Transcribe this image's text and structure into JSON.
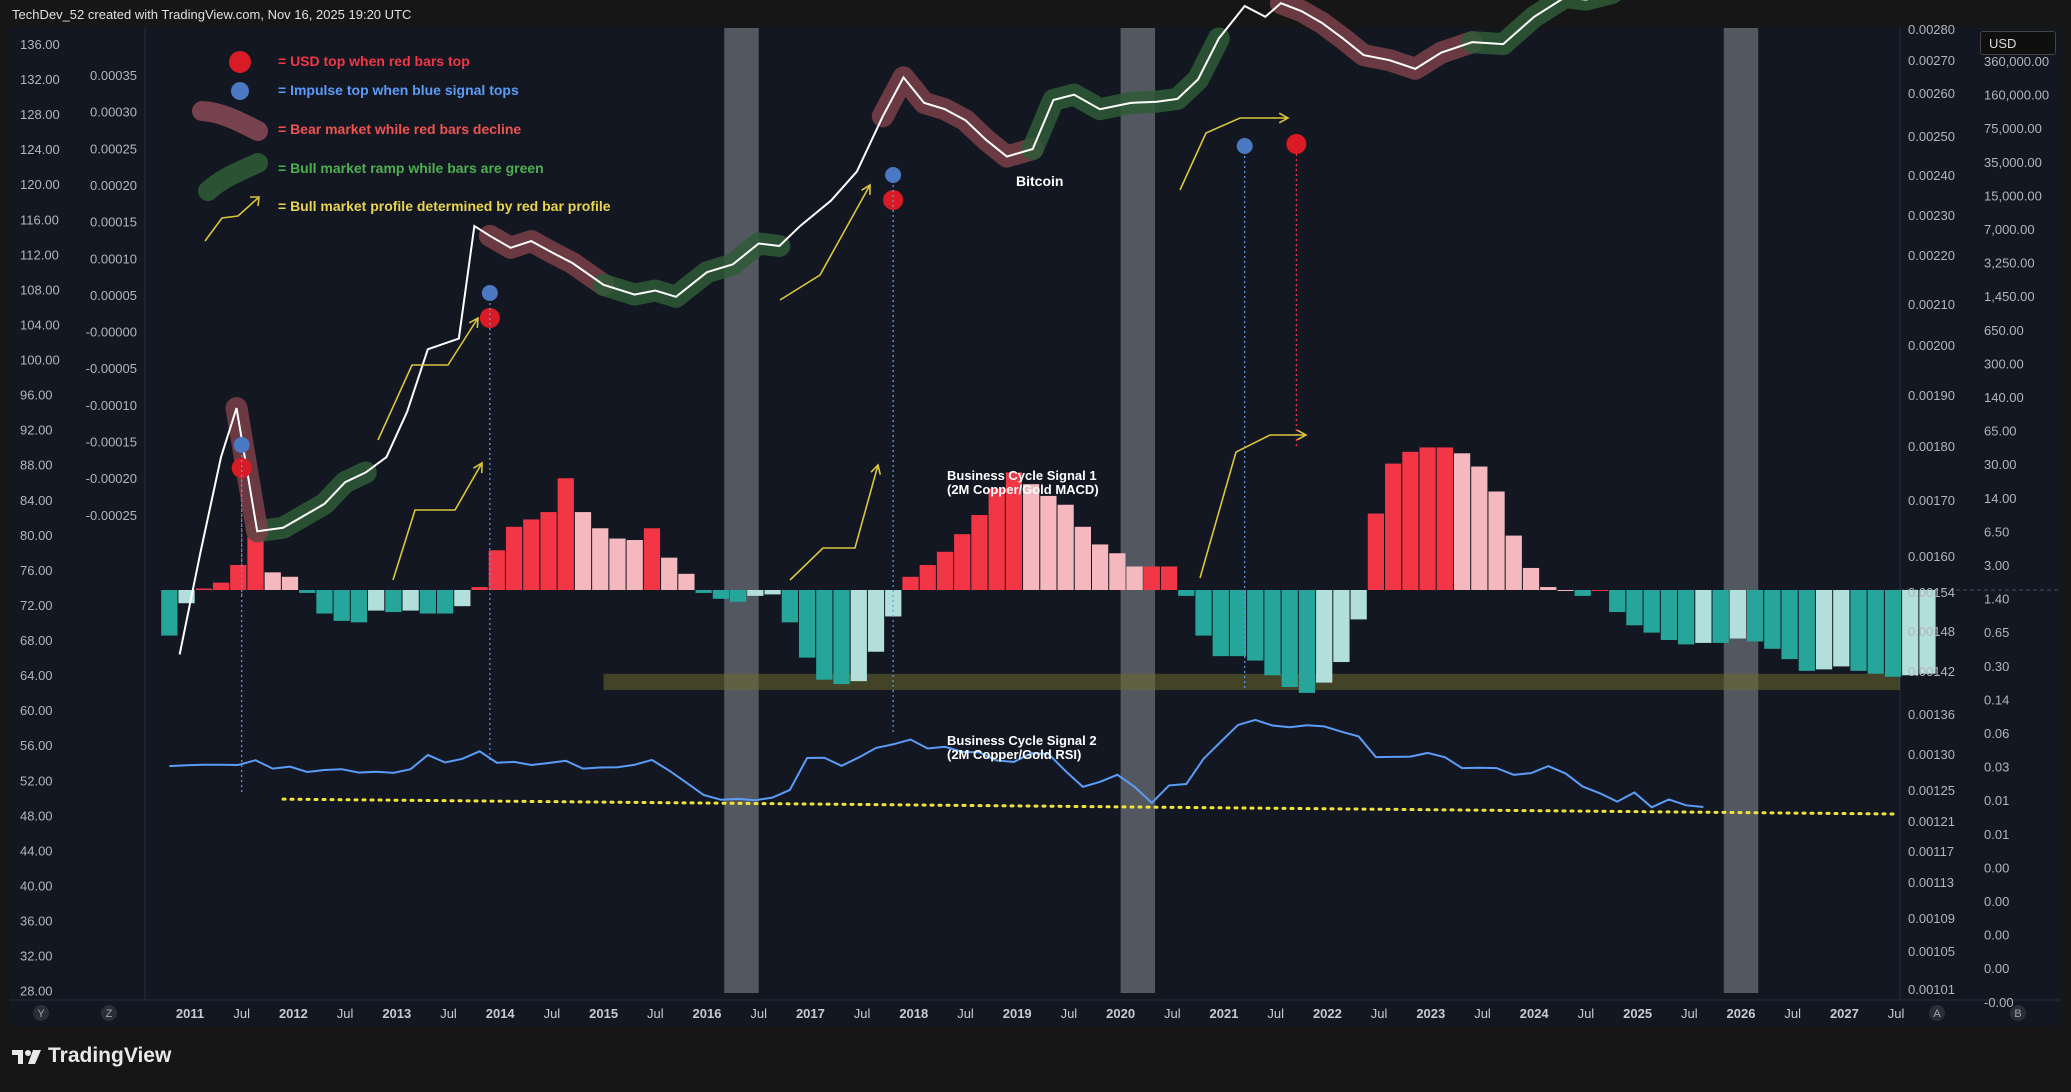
{
  "header": {
    "attribution": "TechDev_52 created with TradingView.com, Nov 16, 2025 19:20 UTC"
  },
  "brand": {
    "name": "TradingView"
  },
  "currency_badge": "USD",
  "buttons": {
    "y": "Y",
    "z": "Z",
    "a": "A",
    "b": "B"
  },
  "legend": [
    {
      "text": "= USD top when red bars top",
      "color": "#f23645",
      "marker": "red-dot"
    },
    {
      "text": "= Impulse top when blue signal tops",
      "color": "#5b9cf6",
      "marker": "blue-dot"
    },
    {
      "text": "= Bear market while red bars decline",
      "color": "#ef5350",
      "marker": "red-swoosh"
    },
    {
      "text": "= Bull market ramp while bars are green",
      "color": "#4caf50",
      "marker": "green-swoosh"
    },
    {
      "text": "= Bull market profile determined by red bar profile",
      "color": "#e8d44d",
      "marker": "yellow-arrow"
    }
  ],
  "annotations": {
    "bitcoin": "Bitcoin",
    "signal1_title": "Business Cycle Signal 1",
    "signal1_sub": "(2M Copper/Gold MACD)",
    "signal2_title": "Business Cycle Signal 2",
    "signal2_sub": "(2M Copper/Gold RSI)"
  },
  "colors": {
    "background": "#131722",
    "macd_bull_strong": "#f23645",
    "macd_bull_weak": "#f5b8be",
    "macd_bear_strong": "#26a69a",
    "macd_bear_weak": "#b2dfdb",
    "rsi_line": "#5b9cf6",
    "btc_line": "#ffffff",
    "trend_line": "#f2e33a"
  },
  "chart_data": {
    "type": "line",
    "x_axis": {
      "ticks": [
        "2011",
        "Jul",
        "2012",
        "Jul",
        "2013",
        "Jul",
        "2014",
        "Jul",
        "2015",
        "Jul",
        "2016",
        "Jul",
        "2017",
        "Jul",
        "2018",
        "Jul",
        "2019",
        "Jul",
        "2020",
        "Jul",
        "2021",
        "Jul",
        "2022",
        "Jul",
        "2023",
        "Jul",
        "2024",
        "Jul",
        "2025",
        "Jul",
        "2026",
        "Jul",
        "2027",
        "Jul"
      ],
      "range": [
        "2010-07",
        "2027-07"
      ]
    },
    "left_axis_outer": {
      "ticks": [
        "136.00",
        "132.00",
        "128.00",
        "124.00",
        "120.00",
        "116.00",
        "112.00",
        "108.00",
        "104.00",
        "100.00",
        "96.00",
        "92.00",
        "88.00",
        "84.00",
        "80.00",
        "76.00",
        "72.00",
        "68.00",
        "64.00",
        "60.00",
        "56.00",
        "52.00",
        "48.00",
        "44.00",
        "40.00",
        "36.00",
        "32.00",
        "28.00"
      ]
    },
    "left_axis_inner": {
      "ticks": [
        "0.00035",
        "0.00030",
        "0.00025",
        "0.00020",
        "0.00015",
        "0.00010",
        "0.00005",
        "-0.00000",
        "-0.00005",
        "-0.00010",
        "-0.00015",
        "-0.00020",
        "-0.00025"
      ]
    },
    "right_axis_inner": {
      "ticks": [
        "0.00280",
        "0.00270",
        "0.00260",
        "0.00250",
        "0.00240",
        "0.00230",
        "0.00220",
        "0.00210",
        "0.00200",
        "0.00190",
        "0.00180",
        "0.00170",
        "0.00160",
        "0.00154",
        "0.00148",
        "0.00142",
        "0.00136",
        "0.00130",
        "0.00125",
        "0.00121",
        "0.00117",
        "0.00113",
        "0.00109",
        "0.00105",
        "0.00101"
      ]
    },
    "right_axis_outer": {
      "ticks": [
        "360,000.00",
        "160,000.00",
        "75,000.00",
        "35,000.00",
        "15,000.00",
        "7,000.00",
        "3,250.00",
        "1,450.00",
        "650.00",
        "300.00",
        "140.00",
        "65.00",
        "30.00",
        "14.00",
        "6.50",
        "3.00",
        "1.40",
        "0.65",
        "0.30",
        "0.14",
        "0.06",
        "0.03",
        "0.01",
        "0.01",
        "0.00",
        "0.00",
        "0.00",
        "0.00",
        "-0.00"
      ]
    },
    "bitcoin_log_price": {
      "x": [
        2010.9,
        2011.1,
        2011.3,
        2011.45,
        2011.65,
        2011.9,
        2012.1,
        2012.3,
        2012.5,
        2012.7,
        2012.9,
        2013.1,
        2013.3,
        2013.6,
        2013.75,
        2013.9,
        2014.1,
        2014.3,
        2014.5,
        2014.7,
        2015.0,
        2015.3,
        2015.5,
        2015.7,
        2016.0,
        2016.25,
        2016.5,
        2016.7,
        2016.9,
        2017.2,
        2017.45,
        2017.7,
        2017.9,
        2018.1,
        2018.3,
        2018.5,
        2018.7,
        2018.9,
        2019.15,
        2019.35,
        2019.55,
        2019.8,
        2020.1,
        2020.35,
        2020.55,
        2020.75,
        2020.95,
        2021.2,
        2021.4,
        2021.55,
        2021.75,
        2021.95,
        2022.15,
        2022.35,
        2022.6,
        2022.85,
        2023.1,
        2023.4,
        2023.7,
        2024.0,
        2024.3,
        2024.5,
        2024.75,
        2025.0,
        2025.3,
        2025.55,
        2025.75
      ],
      "y": [
        0.3,
        2.0,
        12,
        30,
        3.0,
        3.2,
        4.0,
        5.0,
        7.5,
        9,
        12,
        28,
        90,
        110,
        900,
        750,
        600,
        680,
        550,
        450,
        300,
        250,
        270,
        240,
        380,
        440,
        650,
        620,
        900,
        1450,
        2500,
        7000,
        14500,
        9000,
        8000,
        6500,
        4500,
        3300,
        3800,
        9500,
        10500,
        8000,
        9000,
        9200,
        9700,
        14000,
        30000,
        55000,
        45000,
        58000,
        50000,
        40000,
        30000,
        22000,
        20000,
        17000,
        23000,
        28000,
        27000,
        45000,
        65000,
        62000,
        70000,
        100000,
        95000,
        110000,
        98000
      ]
    },
    "business_cycle_signal_1_macd": {
      "x_start": 2010.8,
      "x_step": 0.1667,
      "values": [
        -3.1e-05,
        -9e-06,
        1e-06,
        5e-06,
        1.7e-05,
        3.6e-05,
        1.2e-05,
        9e-06,
        -2e-06,
        -1.6e-05,
        -2.1e-05,
        -2.2e-05,
        -1.4e-05,
        -1.5e-05,
        -1.4e-05,
        -1.6e-05,
        -1.6e-05,
        -1.1e-05,
        2e-06,
        2.7e-05,
        4.3e-05,
        4.8e-05,
        5.3e-05,
        7.6e-05,
        5.3e-05,
        4.2e-05,
        3.5e-05,
        3.4e-05,
        4.2e-05,
        2.2e-05,
        1.1e-05,
        -2e-06,
        -6e-06,
        -8e-06,
        -4e-06,
        -3e-06,
        -2.2e-05,
        -4.6e-05,
        -6.1e-05,
        -6.4e-05,
        -6.2e-05,
        -4.2e-05,
        -1.8e-05,
        9e-06,
        1.7e-05,
        2.6e-05,
        3.8e-05,
        5.1e-05,
        6.9e-05,
        8e-05,
        7.2e-05,
        6.4e-05,
        5.8e-05,
        4.3e-05,
        3.1e-05,
        2.5e-05,
        1.6e-05,
        1.6e-05,
        1.6e-05,
        -4e-06,
        -3.1e-05,
        -4.5e-05,
        -4.5e-05,
        -4.8e-05,
        -5.8e-05,
        -6.6e-05,
        -7e-05,
        -6.3e-05,
        -4.9e-05,
        -2e-05,
        5.2e-05,
        8.6e-05,
        9.4e-05,
        9.7e-05,
        9.7e-05,
        9.3e-05,
        8.4e-05,
        6.7e-05,
        3.7e-05,
        1.5e-05,
        2e-06,
        0,
        -4e-06,
        0,
        -1.5e-05,
        -2.4e-05,
        -2.9e-05,
        -3.4e-05,
        -3.7e-05,
        -3.6e-05,
        -3.6e-05,
        -3.3e-05,
        -3.5e-05,
        -4e-05,
        -4.7e-05,
        -5.5e-05,
        -5.4e-05,
        -5.2e-05,
        -5.5e-05,
        -5.7e-05,
        -5.9e-05,
        -5.8e-05,
        -5.7e-05
      ],
      "highlighted_zone": {
        "from": -5.7e-05,
        "to": -6.8e-05,
        "x_from": 2015.0
      }
    },
    "business_cycle_signal_2_rsi": {
      "x_start": 2010.8,
      "x_step": 0.1667,
      "values": [
        0.001221,
        0.001224,
        0.001226,
        0.001226,
        0.001225,
        0.001242,
        0.001212,
        0.001219,
        0.0012,
        0.001207,
        0.00121,
        0.001198,
        0.001201,
        0.001197,
        0.00121,
        0.001261,
        0.001234,
        0.001247,
        0.001274,
        0.001233,
        0.001236,
        0.001225,
        0.001232,
        0.00124,
        0.001212,
        0.001216,
        0.001217,
        0.001226,
        0.001243,
        0.001205,
        0.001162,
        0.001118,
        0.001101,
        0.001104,
        0.001099,
        0.001109,
        0.001136,
        0.00125,
        0.001251,
        0.001222,
        0.001252,
        0.001286,
        0.001299,
        0.001316,
        0.001284,
        0.00129,
        0.001272,
        0.00127,
        0.001241,
        0.001236,
        0.001267,
        0.001265,
        0.001203,
        0.001147,
        0.001165,
        0.00119,
        0.001147,
        0.00109,
        0.001152,
        0.001157,
        0.001247,
        0.001308,
        0.001368,
        0.001386,
        0.001366,
        0.00136,
        0.001367,
        0.001363,
        0.001344,
        0.001327,
        0.001253,
        0.001254,
        0.001255,
        0.001268,
        0.001253,
        0.001214,
        0.001215,
        0.001214,
        0.00119,
        0.001196,
        0.001221,
        0.001195,
        0.001148,
        0.001124,
        0.001094,
        0.001127,
        0.001074,
        0.001102,
        0.001081,
        0.001075
      ],
      "trend_line": {
        "x": [
          2011.9,
          2027.5
        ],
        "y": [
          0.001103,
          0.00105
        ]
      }
    },
    "shaded_periods": [
      [
        "2016-03",
        "2016-07"
      ],
      [
        "2020-01",
        "2020-05"
      ],
      [
        "2025-11",
        "2026-03"
      ]
    ],
    "usd_top_markers": [
      2011.5,
      2013.9,
      2017.8,
      2021.7
    ],
    "impulse_top_markers": [
      2011.5,
      2013.9,
      2017.8,
      2021.2
    ]
  }
}
